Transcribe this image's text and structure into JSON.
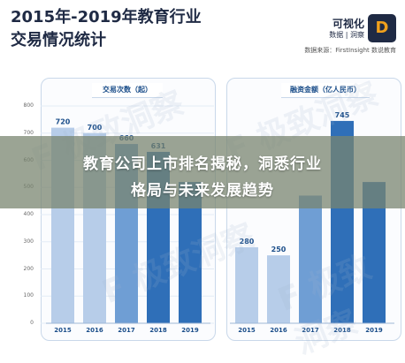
{
  "header": {
    "title_line1": "2015年-2019年教育行业",
    "title_line2": "交易情况统计",
    "brand_name": "可视化",
    "brand_mark": "D",
    "brand_tag": "数据 | 洞察",
    "source_line": "数据来源：FirstInsight  数说教育"
  },
  "banner": {
    "line1": "教育公司上市排名揭秘，洞悉行业",
    "line2": "格局与未来发展趋势"
  },
  "watermark": "F 极致洞察",
  "colors": {
    "light": "#b7cde9",
    "mid": "#6f9ed4",
    "dark": "#2f6fb8",
    "label": "#1b4e8a"
  },
  "chart_data": [
    {
      "type": "bar",
      "title": "交易次数（起）",
      "categories": [
        "2015",
        "2016",
        "2017",
        "2018",
        "2019"
      ],
      "values": [
        720,
        700,
        660,
        631,
        520
      ],
      "data_labels": [
        "720",
        "700",
        "660",
        "631",
        ""
      ],
      "y_ticks": [
        "800",
        "700",
        "600",
        "500",
        "400",
        "300",
        "200",
        "100",
        "0"
      ],
      "ylim": [
        0,
        800
      ]
    },
    {
      "type": "bar",
      "title": "融资金额（亿人民币）",
      "categories": [
        "2015",
        "2016",
        "2017",
        "2018",
        "2019"
      ],
      "values": [
        280,
        250,
        470,
        745,
        520
      ],
      "data_labels": [
        "280",
        "250",
        "",
        "745",
        ""
      ],
      "ylim": [
        0,
        800
      ]
    }
  ]
}
